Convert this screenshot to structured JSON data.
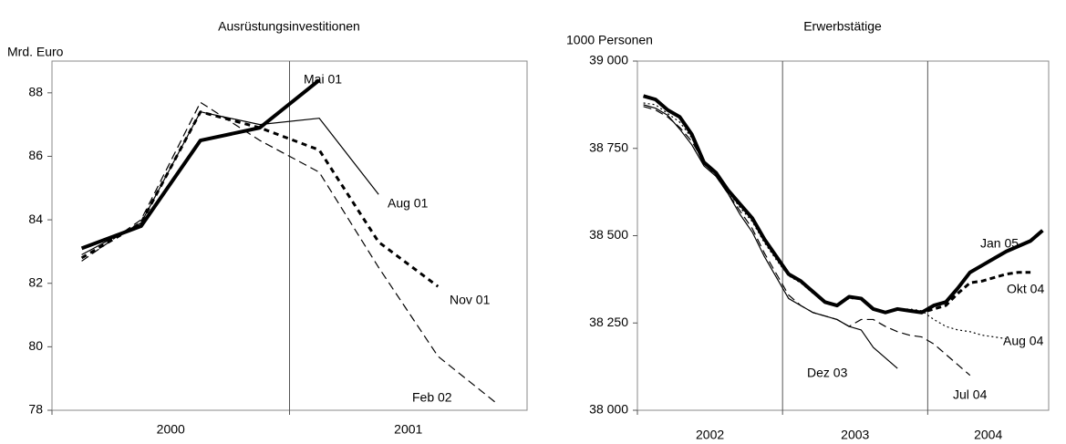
{
  "chart_data": [
    {
      "type": "line",
      "title": "Ausrüstungsinvestitionen",
      "y_label": "Mrd. Euro",
      "categories": [
        null,
        null,
        null,
        null,
        null,
        null,
        null,
        null
      ],
      "groups": [
        {
          "label": "2000",
          "span": 4
        },
        {
          "label": "2001",
          "span": 4
        }
      ],
      "ylim": [
        78,
        89
      ],
      "yticks": [
        78,
        80,
        82,
        84,
        86,
        88
      ],
      "series": [
        {
          "name": "Mai 01",
          "color": "#000",
          "width": 4,
          "dash": "none",
          "values": [
            83.1,
            83.8,
            86.5,
            86.9,
            88.4,
            null,
            null,
            null
          ]
        },
        {
          "name": "Aug 01",
          "color": "#000",
          "width": 1.2,
          "dash": "none",
          "values": [
            82.9,
            83.9,
            87.4,
            87.0,
            87.2,
            84.8,
            null,
            null
          ]
        },
        {
          "name": "Nov 01",
          "color": "#000",
          "width": 3,
          "dash": "6,5",
          "values": [
            82.8,
            83.9,
            87.4,
            86.9,
            86.2,
            83.3,
            81.9,
            null
          ]
        },
        {
          "name": "Feb 02",
          "color": "#000",
          "width": 1.2,
          "dash": "9,5",
          "values": [
            82.7,
            84.0,
            87.7,
            86.5,
            85.5,
            82.5,
            79.7,
            78.2
          ]
        }
      ]
    },
    {
      "type": "line",
      "title": "Erwerbstätige",
      "y_label": "1000 Personen",
      "categories": [
        null,
        null,
        null,
        null,
        null,
        null,
        null,
        null,
        null,
        null,
        null,
        null,
        null,
        null,
        null,
        null,
        null,
        null,
        null,
        null,
        null,
        null,
        null,
        null,
        null,
        null,
        null,
        null,
        null,
        null,
        null,
        null,
        null,
        null
      ],
      "groups": [
        {
          "label": "2002",
          "span": 12
        },
        {
          "label": "2003",
          "span": 12
        },
        {
          "label": "2004",
          "span": 10
        }
      ],
      "ylim": [
        38000,
        39000
      ],
      "yticks": [
        {
          "value": 38000,
          "label": "38 000"
        },
        {
          "value": 38250,
          "label": "38 250"
        },
        {
          "value": 38500,
          "label": "38 500"
        },
        {
          "value": 38750,
          "label": "38 750"
        },
        {
          "value": 39000,
          "label": "39 000"
        }
      ],
      "series": [
        {
          "name": "Jan 05",
          "color": "#000",
          "width": 4,
          "dash": "none",
          "values": [
            38900,
            38890,
            38860,
            38840,
            38790,
            38710,
            38680,
            38630,
            38590,
            38550,
            38490,
            38440,
            38390,
            38370,
            38340,
            38310,
            38300,
            38325,
            38320,
            38290,
            38280,
            38290,
            38285,
            38280,
            38300,
            38310,
            38350,
            38395,
            38415,
            38435,
            38455,
            38470,
            38485,
            38515
          ]
        },
        {
          "name": "Okt 04",
          "color": "#000",
          "width": 3,
          "dash": "6,4",
          "values": [
            38900,
            38890,
            38860,
            38840,
            38790,
            38710,
            38680,
            38630,
            38590,
            38550,
            38490,
            38440,
            38390,
            38370,
            38340,
            38310,
            38300,
            38325,
            38320,
            38290,
            38280,
            38290,
            38285,
            38280,
            38290,
            38300,
            38335,
            38365,
            38370,
            38380,
            38390,
            38395,
            38395,
            null
          ]
        },
        {
          "name": "Aug 04",
          "color": "#000",
          "width": 1.2,
          "dash": "2,3",
          "values": [
            38880,
            38875,
            38850,
            38825,
            38780,
            38705,
            38675,
            38625,
            38580,
            38540,
            38480,
            38430,
            38385,
            38365,
            38335,
            38310,
            38300,
            38320,
            38318,
            38290,
            38280,
            38290,
            38290,
            38285,
            38260,
            38240,
            38230,
            38225,
            38215,
            38210,
            38205,
            null,
            null,
            null
          ]
        },
        {
          "name": "Dez 03",
          "color": "#000",
          "width": 1.2,
          "dash": "none",
          "values": [
            38875,
            38865,
            38845,
            38805,
            38760,
            38700,
            38670,
            38620,
            38560,
            38510,
            38440,
            38380,
            38320,
            38300,
            38280,
            38270,
            38260,
            38240,
            38230,
            38180,
            38150,
            38120,
            null,
            null,
            null,
            null,
            null,
            null,
            null,
            null,
            null,
            null,
            null,
            null
          ]
        },
        {
          "name": "Jul 04",
          "color": "#000",
          "width": 1.2,
          "dash": "9,5",
          "values": [
            38870,
            38860,
            38840,
            38810,
            38770,
            38710,
            38670,
            38620,
            38570,
            38520,
            38450,
            38390,
            38330,
            38300,
            38280,
            38270,
            38260,
            38240,
            38260,
            38260,
            38240,
            38225,
            38215,
            38210,
            38190,
            38160,
            38130,
            38100,
            null,
            null,
            null,
            null,
            null,
            null
          ]
        }
      ]
    }
  ]
}
